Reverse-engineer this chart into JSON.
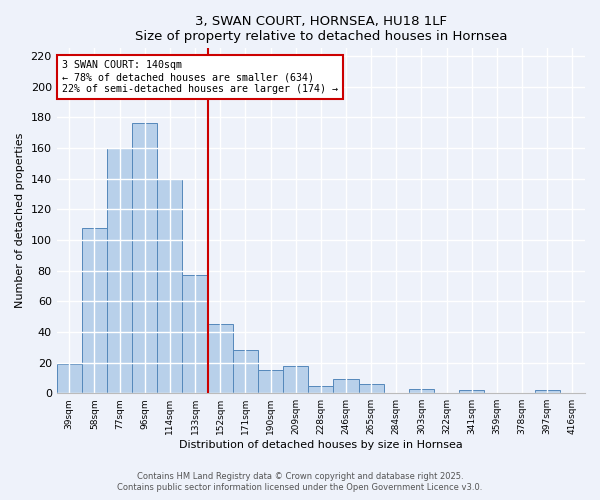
{
  "title": "3, SWAN COURT, HORNSEA, HU18 1LF",
  "subtitle": "Size of property relative to detached houses in Hornsea",
  "xlabel": "Distribution of detached houses by size in Hornsea",
  "ylabel": "Number of detached properties",
  "bar_labels": [
    "39sqm",
    "58sqm",
    "77sqm",
    "96sqm",
    "114sqm",
    "133sqm",
    "152sqm",
    "171sqm",
    "190sqm",
    "209sqm",
    "228sqm",
    "246sqm",
    "265sqm",
    "284sqm",
    "303sqm",
    "322sqm",
    "341sqm",
    "359sqm",
    "378sqm",
    "397sqm",
    "416sqm"
  ],
  "bar_heights": [
    19,
    108,
    160,
    176,
    140,
    77,
    45,
    28,
    15,
    18,
    5,
    9,
    6,
    0,
    3,
    0,
    2,
    0,
    0,
    2,
    0
  ],
  "bar_color": "#b8d0ea",
  "bar_edge_color": "#5588bb",
  "vline_x_idx": 5.5,
  "vline_color": "#cc0000",
  "annotation_text": "3 SWAN COURT: 140sqm\n← 78% of detached houses are smaller (634)\n22% of semi-detached houses are larger (174) →",
  "annotation_box_color": "#ffffff",
  "annotation_box_edge": "#cc0000",
  "ylim": [
    0,
    225
  ],
  "yticks": [
    0,
    20,
    40,
    60,
    80,
    100,
    120,
    140,
    160,
    180,
    200,
    220
  ],
  "bg_color": "#eef2fa",
  "grid_color": "#ffffff",
  "footer1": "Contains HM Land Registry data © Crown copyright and database right 2025.",
  "footer2": "Contains public sector information licensed under the Open Government Licence v3.0."
}
